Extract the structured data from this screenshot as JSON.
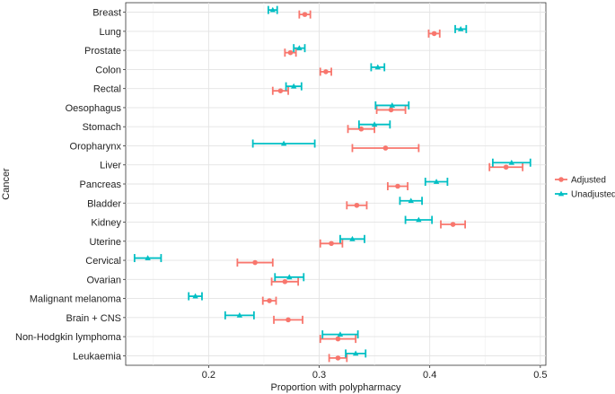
{
  "chart_data": {
    "type": "scatter",
    "subtype": "forest-plot-with-error-bars",
    "title": "",
    "xlabel": "Proportion with polypharmacy",
    "ylabel": "Cancer",
    "xlim": [
      0.125,
      0.505
    ],
    "xticks": [
      "0.2",
      "0.3",
      "0.4",
      "0.5"
    ],
    "grid": true,
    "legend_position": "right",
    "categories": [
      "Breast",
      "Lung",
      "Prostate",
      "Colon",
      "Rectal",
      "Oesophagus",
      "Stomach",
      "Oropharynx",
      "Liver",
      "Pancreas",
      "Bladder",
      "Kidney",
      "Uterine",
      "Cervical",
      "Ovarian",
      "Malignant melanoma",
      "Brain + CNS",
      "Non-Hodgkin lymphoma",
      "Leukaemia"
    ],
    "series": [
      {
        "name": "Adjusted",
        "color": "#F8766D",
        "marker": "circle",
        "estimate": [
          0.287,
          0.404,
          0.274,
          0.306,
          0.265,
          0.365,
          0.338,
          0.36,
          0.469,
          0.371,
          0.334,
          0.421,
          0.311,
          0.242,
          0.269,
          0.255,
          0.272,
          0.317,
          0.317
        ],
        "lower": [
          0.282,
          0.399,
          0.269,
          0.301,
          0.258,
          0.352,
          0.326,
          0.33,
          0.454,
          0.362,
          0.325,
          0.41,
          0.301,
          0.226,
          0.257,
          0.249,
          0.259,
          0.301,
          0.309
        ],
        "upper": [
          0.292,
          0.409,
          0.279,
          0.311,
          0.272,
          0.378,
          0.35,
          0.39,
          0.484,
          0.38,
          0.343,
          0.432,
          0.321,
          0.258,
          0.281,
          0.261,
          0.285,
          0.333,
          0.325
        ]
      },
      {
        "name": "Unadjusted",
        "color": "#00BFC4",
        "marker": "triangle",
        "estimate": [
          0.258,
          0.428,
          0.282,
          0.353,
          0.277,
          0.366,
          0.35,
          0.268,
          0.474,
          0.406,
          0.383,
          0.39,
          0.33,
          0.145,
          0.273,
          0.188,
          0.228,
          0.319,
          0.333
        ],
        "lower": [
          0.254,
          0.423,
          0.277,
          0.347,
          0.27,
          0.351,
          0.336,
          0.24,
          0.457,
          0.396,
          0.373,
          0.378,
          0.319,
          0.133,
          0.26,
          0.182,
          0.215,
          0.303,
          0.324
        ],
        "upper": [
          0.262,
          0.433,
          0.287,
          0.359,
          0.284,
          0.381,
          0.364,
          0.296,
          0.491,
          0.416,
          0.393,
          0.402,
          0.341,
          0.157,
          0.286,
          0.194,
          0.241,
          0.335,
          0.342
        ]
      }
    ]
  }
}
